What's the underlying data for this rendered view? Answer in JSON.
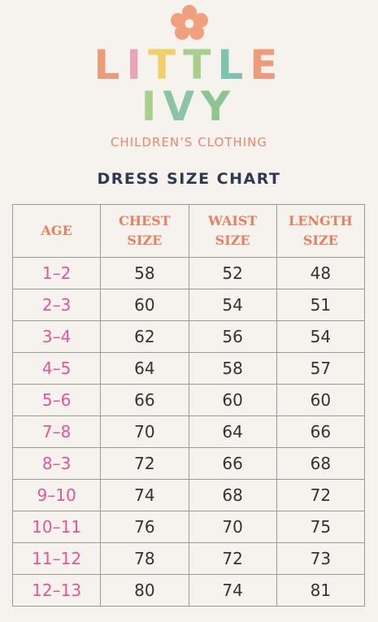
{
  "brand": {
    "line1": [
      "L",
      "I",
      "T",
      "T",
      "L",
      "E"
    ],
    "line2": [
      "I",
      "V",
      "Y"
    ],
    "tagline": "CHILDREN’S CLOTHING"
  },
  "title": "DRESS SIZE CHART",
  "table": {
    "headers": [
      "AGE",
      "CHEST SIZE",
      "WAIST SIZE",
      "LENGTH SIZE"
    ],
    "rows": [
      [
        "1–2",
        58,
        52,
        48
      ],
      [
        "2–3",
        60,
        54,
        51
      ],
      [
        "3–4",
        62,
        56,
        54
      ],
      [
        "4–5",
        64,
        58,
        57
      ],
      [
        "5–6",
        66,
        60,
        60
      ],
      [
        "7–8",
        70,
        64,
        66
      ],
      [
        "8–3",
        72,
        66,
        68
      ],
      [
        "9–10",
        74,
        68,
        72
      ],
      [
        "10–11",
        76,
        70,
        75
      ],
      [
        "11–12",
        78,
        72,
        73
      ],
      [
        "12–13",
        80,
        74,
        81
      ]
    ]
  }
}
